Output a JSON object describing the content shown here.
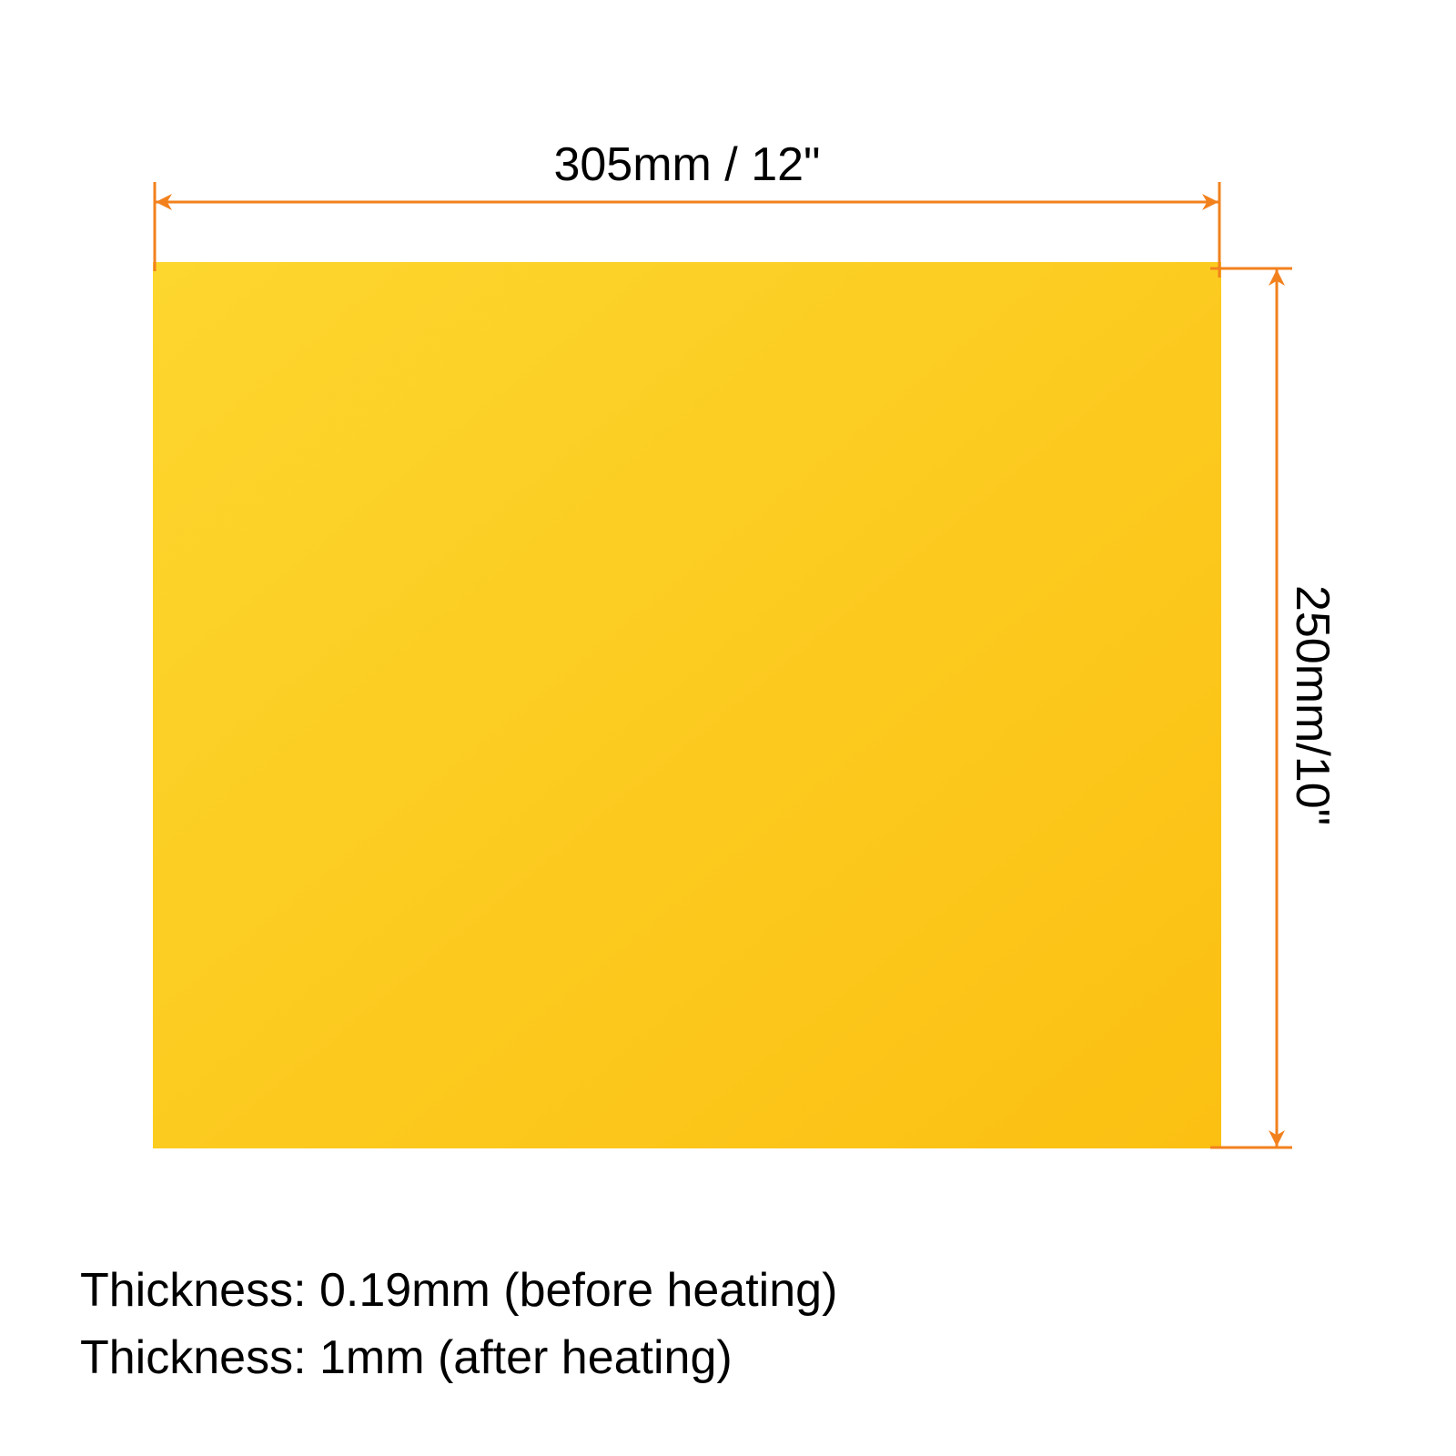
{
  "dimensions": {
    "width_label": "305mm / 12\"",
    "height_label": "250mm/10\""
  },
  "notes": [
    "Thickness: 0.19mm (before heating)",
    "Thickness: 1mm (after heating)"
  ],
  "colors": {
    "sheet_light": "#FDD62E",
    "sheet_dark": "#FBC012",
    "dimension_line": "#F2811D"
  }
}
